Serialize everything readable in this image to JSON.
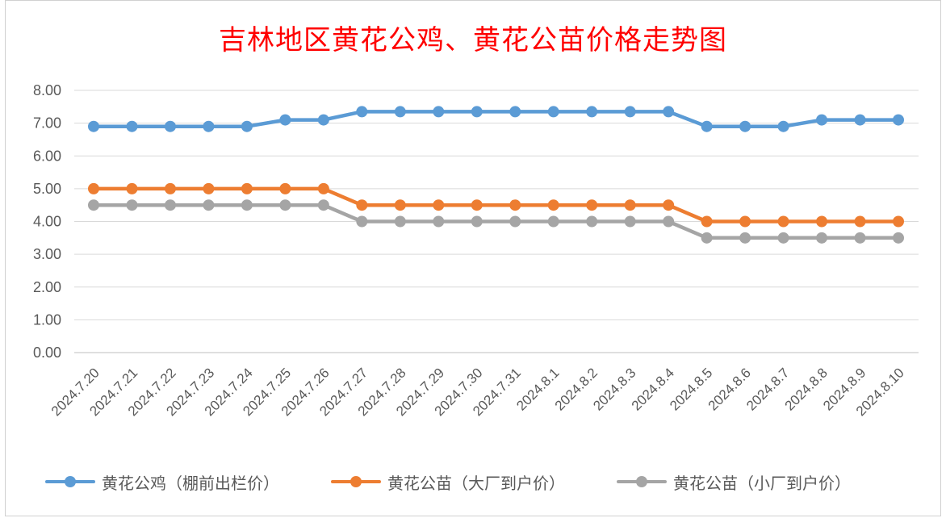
{
  "chart_data": {
    "type": "line",
    "title": "吉林地区黄花公鸡、黄花公苗价格走势图",
    "categories": [
      "2024.7.20",
      "2024.7.21",
      "2024.7.22",
      "2024.7.23",
      "2024.7.24",
      "2024.7.25",
      "2024.7.26",
      "2024.7.27",
      "2024.7.28",
      "2024.7.29",
      "2024.7.30",
      "2024.7.31",
      "2024.8.1",
      "2024.8.2",
      "2024.8.3",
      "2024.8.4",
      "2024.8.5",
      "2024.8.6",
      "2024.8.7",
      "2024.8.8",
      "2024.8.9",
      "2024.8.10"
    ],
    "ylim": [
      0,
      8
    ],
    "yticks": [
      "0.00",
      "1.00",
      "2.00",
      "3.00",
      "4.00",
      "5.00",
      "6.00",
      "7.00",
      "8.00"
    ],
    "grid": true,
    "legend_position": "bottom",
    "series": [
      {
        "name": "黄花公鸡（棚前出栏价）",
        "color": "#5b9bd5",
        "values": [
          6.9,
          6.9,
          6.9,
          6.9,
          6.9,
          7.1,
          7.1,
          7.35,
          7.35,
          7.35,
          7.35,
          7.35,
          7.35,
          7.35,
          7.35,
          7.35,
          6.9,
          6.9,
          6.9,
          7.1,
          7.1,
          7.1
        ]
      },
      {
        "name": "黄花公苗（大厂到户价）",
        "color": "#ed7d31",
        "values": [
          5.0,
          5.0,
          5.0,
          5.0,
          5.0,
          5.0,
          5.0,
          4.5,
          4.5,
          4.5,
          4.5,
          4.5,
          4.5,
          4.5,
          4.5,
          4.5,
          4.0,
          4.0,
          4.0,
          4.0,
          4.0,
          4.0
        ]
      },
      {
        "name": "黄花公苗（小厂到户价）",
        "color": "#a5a5a5",
        "values": [
          4.5,
          4.5,
          4.5,
          4.5,
          4.5,
          4.5,
          4.5,
          4.0,
          4.0,
          4.0,
          4.0,
          4.0,
          4.0,
          4.0,
          4.0,
          4.0,
          3.5,
          3.5,
          3.5,
          3.5,
          3.5,
          3.5
        ]
      }
    ]
  }
}
